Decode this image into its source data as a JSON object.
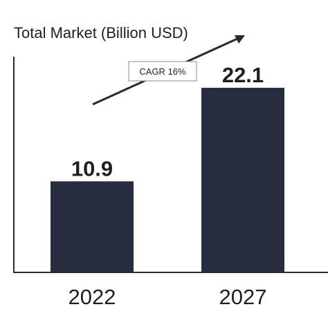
{
  "chart_data": {
    "type": "bar",
    "title": "Total Market (Billion USD)",
    "categories": [
      "2022",
      "2027"
    ],
    "values": [
      10.9,
      22.1
    ],
    "value_labels": [
      "10.9",
      "22.1"
    ],
    "ylim": [
      0,
      24
    ],
    "xlabel": "",
    "ylabel": "",
    "grid": false,
    "legend": "none",
    "annotation": "CAGR 16%",
    "colors": {
      "bar": "#272d3f",
      "axis": "#262a33",
      "text": "#1f1f1f"
    }
  }
}
